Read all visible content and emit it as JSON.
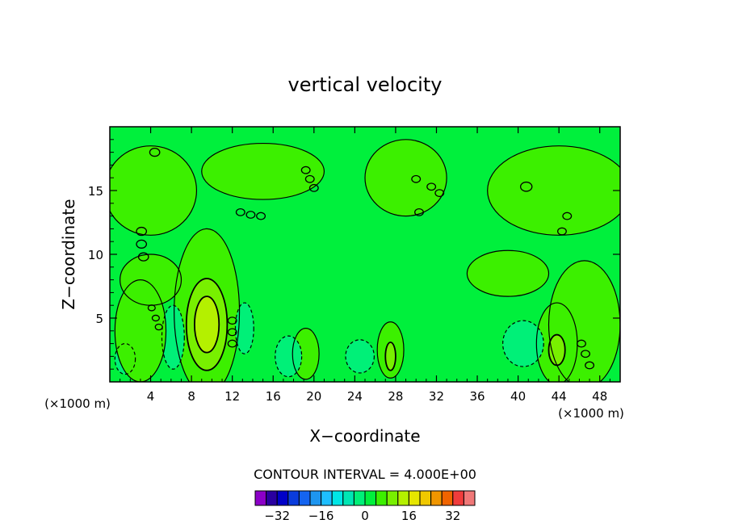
{
  "chart_data": {
    "type": "heatmap",
    "title": "vertical velocity",
    "xlabel": "X−coordinate",
    "ylabel": "Z−coordinate",
    "x_unit_left": "(×1000 m)",
    "x_unit_right": "(×1000 m)",
    "xlim": [
      0,
      50
    ],
    "ylim": [
      0,
      20
    ],
    "x_ticks": [
      4,
      8,
      12,
      16,
      20,
      24,
      28,
      32,
      36,
      40,
      44,
      48
    ],
    "y_ticks": [
      5,
      10,
      15
    ],
    "contour_interval_label": "CONTOUR INTERVAL = 4.000E+00",
    "colorbar": {
      "levels": [
        -40,
        -36,
        -32,
        -28,
        -24,
        -20,
        -16,
        -12,
        -8,
        -4,
        0,
        4,
        8,
        12,
        16,
        20,
        24,
        28,
        32,
        36,
        40
      ],
      "tick_values": [
        -32,
        -16,
        0,
        16,
        32
      ],
      "colors": [
        "#8c00c8",
        "#2a00a0",
        "#0000c8",
        "#0a3cdc",
        "#1464f0",
        "#1e96f0",
        "#1ebeff",
        "#00e6e6",
        "#00e6b4",
        "#00f078",
        "#00f03c",
        "#3cf000",
        "#78f000",
        "#b4f000",
        "#e6e600",
        "#f0c800",
        "#f09600",
        "#f06400",
        "#f03c3c",
        "#f07878"
      ],
      "tick_labels": [
        "−32",
        "−16",
        "0",
        "16",
        "32"
      ]
    },
    "features": [
      {
        "x": 9.5,
        "z": 4.5,
        "rx": 1.2,
        "rz": 2.2,
        "value": 12
      },
      {
        "x": 9.5,
        "z": 4.5,
        "rx": 2.0,
        "rz": 3.6,
        "value": 8
      },
      {
        "x": 9.5,
        "z": 5.5,
        "rx": 3.2,
        "rz": 6.5,
        "value": 4
      },
      {
        "x": 43.8,
        "z": 2.5,
        "rx": 0.8,
        "rz": 1.2,
        "value": 8
      },
      {
        "x": 43.8,
        "z": 3.0,
        "rx": 2.0,
        "rz": 3.2,
        "value": 4
      },
      {
        "x": 27.5,
        "z": 2.0,
        "rx": 0.5,
        "rz": 1.1,
        "value": 8
      },
      {
        "x": 27.5,
        "z": 2.5,
        "rx": 1.3,
        "rz": 2.2,
        "value": 4
      },
      {
        "x": 19.2,
        "z": 2.2,
        "rx": 1.3,
        "rz": 2.0,
        "value": 4
      },
      {
        "x": 6.2,
        "z": 3.5,
        "rx": 1.1,
        "rz": 2.5,
        "value": -4
      },
      {
        "x": 13.2,
        "z": 4.2,
        "rx": 0.9,
        "rz": 2.0,
        "value": -4
      },
      {
        "x": 17.5,
        "z": 2.0,
        "rx": 1.3,
        "rz": 1.6,
        "value": -4
      },
      {
        "x": 24.5,
        "z": 2.0,
        "rx": 1.4,
        "rz": 1.3,
        "value": -4
      },
      {
        "x": 40.5,
        "z": 3.0,
        "rx": 2.0,
        "rz": 1.8,
        "value": -4
      },
      {
        "x": 1.5,
        "z": 1.8,
        "rx": 1.0,
        "rz": 1.2,
        "value": -4
      },
      {
        "x": 46.5,
        "z": 4.5,
        "rx": 3.5,
        "rz": 5.0,
        "value": 4
      },
      {
        "x": 3.0,
        "z": 4.0,
        "rx": 2.5,
        "rz": 4.0,
        "value": 4
      },
      {
        "x": 15.0,
        "z": 16.5,
        "rx": 6.0,
        "rz": 2.2,
        "value": 4
      },
      {
        "x": 29.0,
        "z": 16.0,
        "rx": 4.0,
        "rz": 3.0,
        "value": 4
      },
      {
        "x": 4.0,
        "z": 15.0,
        "rx": 4.5,
        "rz": 3.5,
        "value": 4
      },
      {
        "x": 44.0,
        "z": 15.0,
        "rx": 7.0,
        "rz": 3.5,
        "value": 4
      },
      {
        "x": 39.0,
        "z": 8.5,
        "rx": 4.0,
        "rz": 1.8,
        "value": 4
      },
      {
        "x": 4.0,
        "z": 8.0,
        "rx": 3.0,
        "rz": 2.0,
        "value": 4
      }
    ],
    "small_cells": [
      {
        "x": 4.4,
        "z": 18.0,
        "r": 0.35
      },
      {
        "x": 19.2,
        "z": 16.6,
        "r": 0.3
      },
      {
        "x": 19.6,
        "z": 15.9,
        "r": 0.3
      },
      {
        "x": 20.0,
        "z": 15.2,
        "r": 0.3
      },
      {
        "x": 12.8,
        "z": 13.3,
        "r": 0.3
      },
      {
        "x": 13.8,
        "z": 13.1,
        "r": 0.3
      },
      {
        "x": 14.8,
        "z": 13.0,
        "r": 0.3
      },
      {
        "x": 3.1,
        "z": 11.8,
        "r": 0.35
      },
      {
        "x": 3.1,
        "z": 10.8,
        "r": 0.35
      },
      {
        "x": 3.3,
        "z": 9.8,
        "r": 0.35
      },
      {
        "x": 12.0,
        "z": 4.8,
        "r": 0.3
      },
      {
        "x": 12.0,
        "z": 3.9,
        "r": 0.3
      },
      {
        "x": 12.0,
        "z": 3.0,
        "r": 0.3
      },
      {
        "x": 30.0,
        "z": 15.9,
        "r": 0.3
      },
      {
        "x": 31.5,
        "z": 15.3,
        "r": 0.3
      },
      {
        "x": 32.3,
        "z": 14.8,
        "r": 0.3
      },
      {
        "x": 30.3,
        "z": 13.3,
        "r": 0.3
      },
      {
        "x": 40.8,
        "z": 15.3,
        "r": 0.4
      },
      {
        "x": 44.8,
        "z": 13.0,
        "r": 0.3
      },
      {
        "x": 44.3,
        "z": 11.8,
        "r": 0.3
      },
      {
        "x": 46.2,
        "z": 3.0,
        "r": 0.3
      },
      {
        "x": 46.6,
        "z": 2.2,
        "r": 0.3
      },
      {
        "x": 47.0,
        "z": 1.3,
        "r": 0.3
      },
      {
        "x": 4.1,
        "z": 5.8,
        "r": 0.25
      },
      {
        "x": 4.5,
        "z": 5.0,
        "r": 0.25
      },
      {
        "x": 4.8,
        "z": 4.3,
        "r": 0.25
      }
    ]
  }
}
